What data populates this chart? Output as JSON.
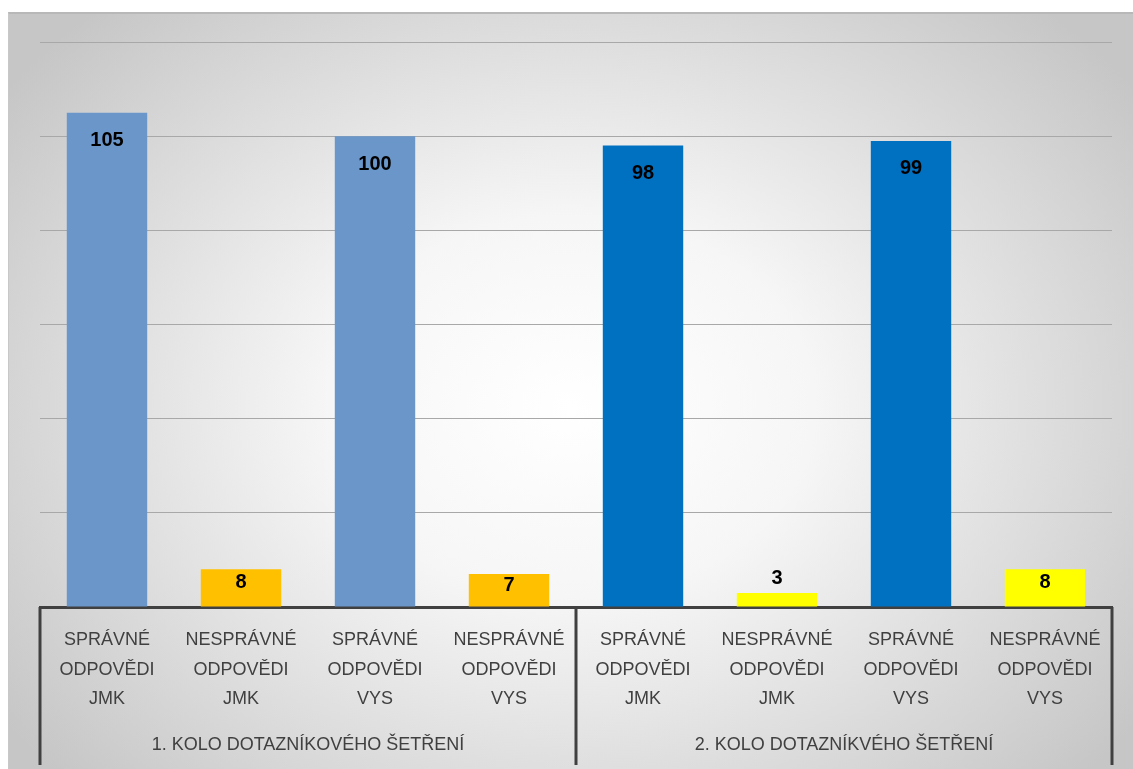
{
  "chart_data": {
    "type": "bar",
    "categories": [
      "SPRÁVNÉ ODPOVĚDI JMK",
      "NESPRÁVNÉ ODPOVĚDI JMK",
      "SPRÁVNÉ ODPOVĚDI VYS",
      "NESPRÁVNÉ ODPOVĚDI VYS",
      "SPRÁVNÉ ODPOVĚDI JMK",
      "NESPRÁVNÉ ODPOVĚDI JMK",
      "SPRÁVNÉ ODPOVĚDI VYS",
      "NESPRÁVNÉ ODPOVĚDI VYS"
    ],
    "values": [
      105,
      8,
      100,
      7,
      98,
      3,
      99,
      8
    ],
    "colors": [
      "#6a96c9",
      "#ffc000",
      "#6a96c9",
      "#ffc000",
      "#0070c0",
      "#ffff00",
      "#0070c0",
      "#ffff00"
    ],
    "ylim": [
      0,
      120
    ],
    "yticks": [
      0,
      20,
      40,
      60,
      80,
      100,
      120
    ],
    "tick_labels": "x",
    "grid": "y",
    "data_labels": true,
    "annotations": [
      "1. KOLO DOTAZNÍKOVÉHO ŠETŘENÍ",
      "2. KOLO DOTAZNÍKVÉHO ŠETŘENÍ"
    ]
  }
}
